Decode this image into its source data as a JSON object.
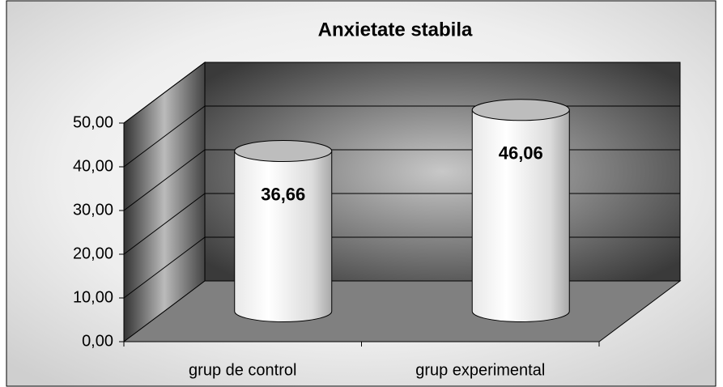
{
  "chart_data": {
    "type": "bar",
    "title": "Anxietate stabila",
    "categories": [
      "grup de control",
      "grup experimental"
    ],
    "values": [
      36.66,
      46.06
    ],
    "value_labels": [
      "36,66",
      "46,06"
    ],
    "ylim": [
      0,
      50
    ],
    "yticks": [
      {
        "value": 0,
        "label": "0,00"
      },
      {
        "value": 10,
        "label": "10,00"
      },
      {
        "value": 20,
        "label": "20,00"
      },
      {
        "value": 30,
        "label": "30,00"
      },
      {
        "value": 40,
        "label": "40,00"
      },
      {
        "value": 50,
        "label": "50,00"
      }
    ],
    "grid": true,
    "color": "#ffffff"
  }
}
